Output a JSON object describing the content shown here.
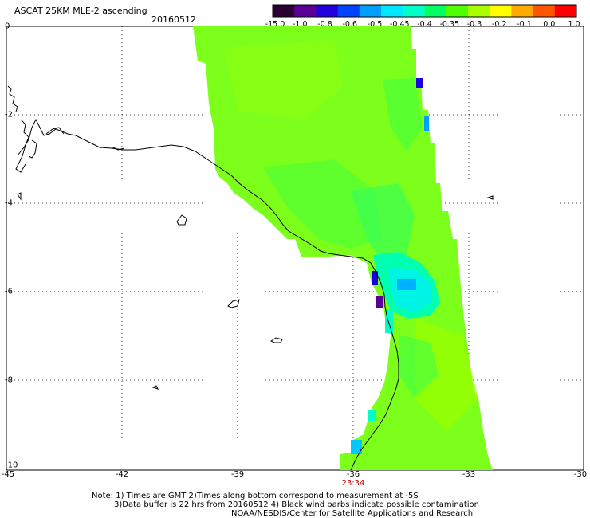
{
  "header": {
    "title": "ASCAT 25KM MLE-2 ascending",
    "date": "20160512"
  },
  "colorbar": {
    "labels": [
      "-15.0",
      "-1.0",
      "-0.8",
      "-0.6",
      "-0.5",
      "-0.45",
      "-0.4",
      "-0.35",
      "-0.3",
      "-0.2",
      "-0.1",
      "0.0",
      "1.0"
    ],
    "colors": [
      "#2a0033",
      "#5a0096",
      "#2200dd",
      "#0044ff",
      "#00a0ff",
      "#00e8ff",
      "#00ffc8",
      "#00ff60",
      "#50ff00",
      "#a8ff00",
      "#ffff00",
      "#ffaa00",
      "#ff5500",
      "#ff0000"
    ]
  },
  "axes": {
    "lat_labels": [
      "0",
      "-2",
      "-4",
      "-6",
      "-8",
      "-10"
    ],
    "lon_labels": [
      "-45",
      "-42",
      "-39",
      "-36",
      "-33",
      "-30"
    ],
    "time_label": "23:34"
  },
  "notes": {
    "line1": "Note: 1) Times are GMT 2)Times along bottom correspond to measurement at -5S",
    "line2": "3)Data buffer is 22 hrs from 20160512 4) Black wind barbs indicate possible contamination",
    "line3": "NOAA/NESDIS/Center for Satellite Applications and Research"
  },
  "colors": {
    "background": "#ffffff",
    "swath_main": "#7cff1a",
    "coast": "#000000",
    "grid": "#000000",
    "time_label": "#cc0000"
  }
}
